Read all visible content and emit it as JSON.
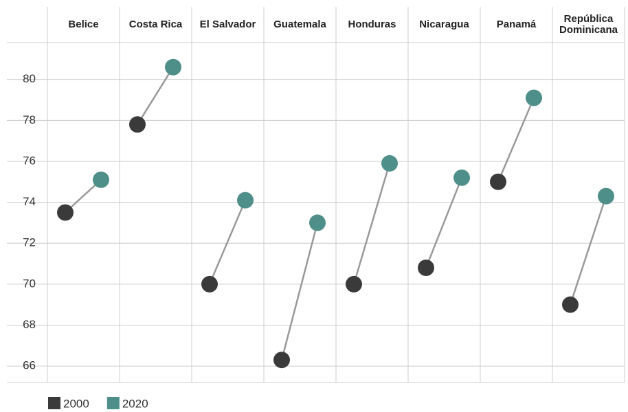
{
  "chart_data": {
    "type": "dumbbell",
    "categories": [
      "Belice",
      "Costa Rica",
      "El Salvador",
      "Guatemala",
      "Honduras",
      "Nicaragua",
      "Panamá",
      "República Dominicana"
    ],
    "series": [
      {
        "name": "2000",
        "color": "#3a3a3a",
        "values": [
          73.5,
          77.8,
          70.0,
          66.3,
          70.0,
          70.8,
          75.0,
          69.0
        ]
      },
      {
        "name": "2020",
        "color": "#4e8f89",
        "values": [
          75.1,
          80.6,
          74.1,
          73.0,
          75.9,
          75.2,
          79.1,
          74.3
        ]
      }
    ],
    "ylim": [
      65.2,
      81.8
    ],
    "yticks": [
      66,
      68,
      70,
      72,
      74,
      76,
      78,
      80
    ],
    "grid": true
  }
}
